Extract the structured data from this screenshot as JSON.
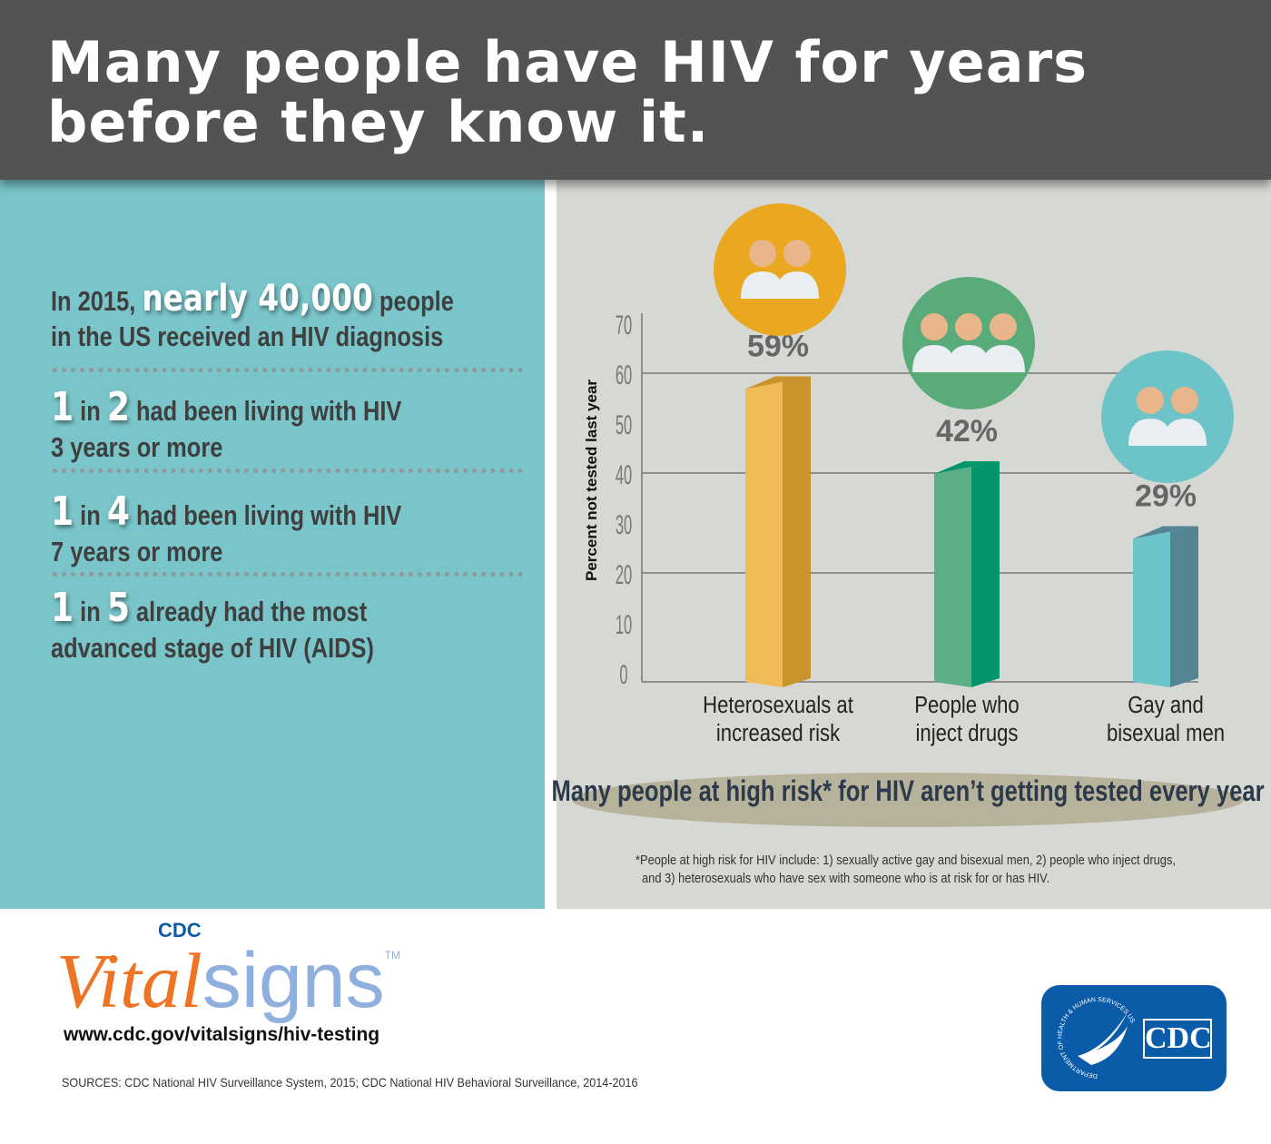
{
  "header": {
    "title_line1": "Many people have HIV for years",
    "title_line2": "before they know it."
  },
  "left_panel": {
    "stat1": {
      "pre": "In 2015, ",
      "highlight": "nearly 40,000",
      "post": " people",
      "line2": "in the US received an HIV diagnosis"
    },
    "stat2": {
      "n1": "1",
      "in": " in ",
      "n2": "2",
      "post": " had been living with HIV",
      "line2": "3 years or more"
    },
    "stat3": {
      "n1": "1",
      "in": " in ",
      "n2": "4",
      "post": " had been living with HIV",
      "line2": "7 years or more"
    },
    "stat4": {
      "n1": "1",
      "in": " in ",
      "n2": "5",
      "post": " already had the most",
      "line2": "advanced stage of HIV (AIDS)"
    }
  },
  "chart_data": {
    "type": "bar",
    "categories": [
      [
        "Heterosexuals at",
        "increased risk"
      ],
      [
        "People who",
        "inject drugs"
      ],
      [
        "Gay and",
        "bisexual men"
      ]
    ],
    "values": [
      59,
      42,
      29
    ],
    "data_labels": [
      "59%",
      "42%",
      "29%"
    ],
    "ylabel": "Percent not tested last year",
    "ylim": [
      0,
      70
    ],
    "yticks": [
      "0",
      "10",
      "20",
      "30",
      "40",
      "50",
      "60",
      "70"
    ],
    "gridlines": [
      20,
      40,
      60
    ],
    "colors": {
      "front": [
        "#f0bb55",
        "#5aaf86",
        "#6cc4cb"
      ],
      "side": [
        "#c9922a",
        "#00956b",
        "#558593"
      ],
      "circle": [
        "#eaa820",
        "#5aab7a",
        "#6cc3c8"
      ]
    },
    "icons": [
      "two-people-icon",
      "three-people-icon",
      "two-men-icon"
    ],
    "subtitle": "Many people at high risk* for HIV aren’t getting tested every year",
    "footnote_line1": "*People at high risk for HIV include: 1) sexually active gay and bisexual men, 2) people who inject drugs,",
    "footnote_line2": "and 3)  heterosexuals who have sex with someone who is at risk for or has HIV."
  },
  "footer": {
    "logo_cdc": "CDC",
    "logo_vital": "Vital",
    "logo_signs": "signs",
    "logo_tm": "TM",
    "url": "www.cdc.gov/vitalsigns/hiv-testing",
    "sources": "SOURCES: CDC National HIV Surveillance System, 2015; CDC National HIV Behavioral Surveillance, 2014-2016",
    "hhs_seal_text": "DEPARTMENT OF HEALTH & HUMAN SERVICES USA",
    "cdc_logo_text": "CDC",
    "colors": {
      "vital": "#ee7323",
      "signs": "#8fb0de",
      "cdc_blue": "#0a5ca8"
    }
  }
}
